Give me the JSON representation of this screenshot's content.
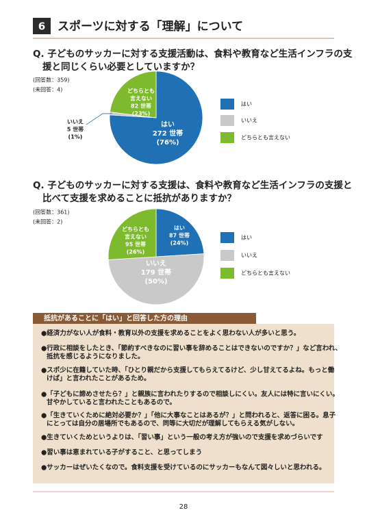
{
  "section_number": "6",
  "section_title": "スポーツに対する「理解」について",
  "chart_data": [
    {
      "type": "pie",
      "question": [
        "Q. 子どものサッカーに対する支援活動は、食料や教育など生活インフラの支",
        "援と同じくらい必要としていますか？"
      ],
      "notes": [
        "(回答数：359)",
        "(未回答：4)"
      ],
      "categories": [
        "はい",
        "いいえ",
        "どちらとも言えない"
      ],
      "slice_labels": [
        [
          "はい"
        ],
        [
          "いいえ"
        ],
        [
          "どちらとも",
          "言えない"
        ]
      ],
      "counts": [
        272,
        5,
        82
      ],
      "count_labels": [
        "272 世帯",
        "5 世帯",
        "82 世帯"
      ],
      "values": [
        76,
        1,
        23
      ],
      "value_labels": [
        "(76%)",
        "(1%)",
        "(23%)"
      ],
      "colors": [
        "#1f70b5",
        "#c9c9c9",
        "#7dba2d"
      ]
    },
    {
      "type": "pie",
      "question": [
        "Q. 子どものサッカーに対する支援は、食料や教育など生活インフラの支援と",
        "比べて支援を求めることに抵抗がありますか？"
      ],
      "notes": [
        "(回答数：361)",
        "(未回答：2)"
      ],
      "categories": [
        "はい",
        "いいえ",
        "どちらとも言えない"
      ],
      "slice_labels": [
        [
          "はい"
        ],
        [
          "いいえ"
        ],
        [
          "どちらとも",
          "言えない"
        ]
      ],
      "counts": [
        87,
        179,
        95
      ],
      "count_labels": [
        "87 世帯",
        "179 世帯",
        "95 世帯"
      ],
      "values": [
        24,
        50,
        26
      ],
      "value_labels": [
        "(24%)",
        "(50%)",
        "(26%)"
      ],
      "colors": [
        "#1f70b5",
        "#c9c9c9",
        "#7dba2d"
      ]
    }
  ],
  "reasons": {
    "title": "抵抗があることに「はい」と回答した方の理由",
    "items": [
      [
        "●経済力がない人が食料・教育以外の支援を求めることをよく思わない人が多いと思う。"
      ],
      [
        "●行政に相談をしたとき、「節約すべきなのに習い事を辞めることはできないのですか？」など言われ、",
        "抵抗を感じるようになりました。"
      ],
      [
        "●スポ少に在籍していた時、「ひとり親だから支援してもらえてるけど、少し甘えてるよね。もっと働",
        "けば」と言われたことがあるため。"
      ],
      [
        "●「子どもに諦めさせたら？」と親族に言われたりするので相談しにくい。友人には特に言いにくい。",
        "甘やかしていると言われたこともあるので。"
      ],
      [
        "●「生きていくために絶対必要か？」「他に大事なことはあるが？」と問われると、返答に困る。息子",
        "にとっては自分の居場所でもあるので、同等に大切だが理解してもらえる気がしない。"
      ],
      [
        "●生きていくためというよりは、「習い事」という一般の考え方が強いので支援を求めづらいです"
      ],
      [
        "●習い事は恵まれている子がすること、と思ってしまう"
      ],
      [
        "●サッカーはぜいたくなので。食料支援を受けているのにサッカーもなんて図々しいと思われる。"
      ]
    ]
  },
  "page_number": "28"
}
